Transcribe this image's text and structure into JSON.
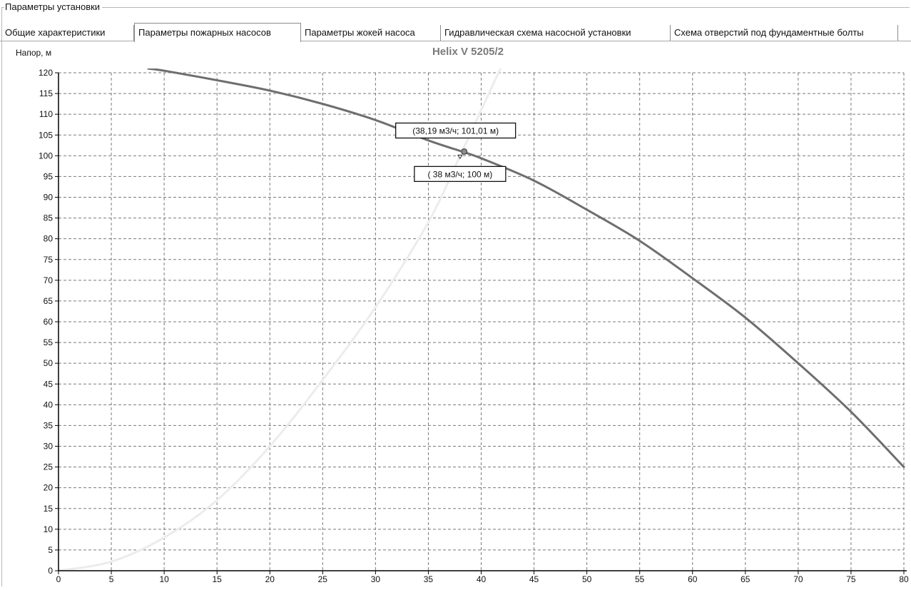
{
  "group": {
    "title": "Параметры установки"
  },
  "tabs": [
    {
      "label": "Общие характеристики",
      "active": false
    },
    {
      "label": "Параметры пожарных насосов",
      "active": true
    },
    {
      "label": "Параметры жокей насоса",
      "active": false
    },
    {
      "label": "Гидравлическая схема насосной установки",
      "active": false
    },
    {
      "label": "Схема отверстий под фундаментные болты",
      "active": false
    }
  ],
  "chart_data": {
    "type": "line",
    "title": "Helix V 5205/2",
    "ylabel": "Напор, м",
    "xlabel": "",
    "xlim": [
      0,
      80
    ],
    "ylim": [
      0,
      120
    ],
    "x_ticks": [
      0,
      5,
      10,
      15,
      20,
      25,
      30,
      35,
      40,
      45,
      50,
      55,
      60,
      65,
      70,
      75,
      80
    ],
    "y_ticks": [
      0,
      5,
      10,
      15,
      20,
      25,
      30,
      35,
      40,
      45,
      50,
      55,
      60,
      65,
      70,
      75,
      80,
      85,
      90,
      95,
      100,
      105,
      110,
      115,
      120
    ],
    "grid": true,
    "grid_style": "dashed",
    "series": [
      {
        "color": "#6e6e6e",
        "x": [
          8.5,
          10,
          15,
          20,
          25,
          30,
          35,
          38.19,
          40,
          45,
          50,
          55,
          60,
          65,
          70,
          75,
          80
        ],
        "y": [
          121,
          120.5,
          118.2,
          115.7,
          112.5,
          108.6,
          103.7,
          101.01,
          99.4,
          94.0,
          87.0,
          79.5,
          70.5,
          61.0,
          50.0,
          38.3,
          25.0
        ]
      },
      {
        "color": "#ececec",
        "x": [
          0,
          5,
          10,
          15,
          20,
          25,
          30,
          35,
          38,
          40,
          42
        ],
        "y": [
          0,
          2.2,
          8.0,
          17.0,
          30.0,
          46.0,
          63.5,
          84.0,
          100.0,
          111.0,
          122.0
        ]
      }
    ],
    "annotations": [
      {
        "text": "(38,19 м3/ч; 101,01 м)",
        "x": 38.19,
        "y": 101.01
      },
      {
        "text": "( 38 м3/ч; 100 м)",
        "x": 38,
        "y": 100
      }
    ],
    "colors": {
      "axis": "#000000",
      "grid": "#7a7a7a",
      "title": "#7a7a7a"
    }
  }
}
